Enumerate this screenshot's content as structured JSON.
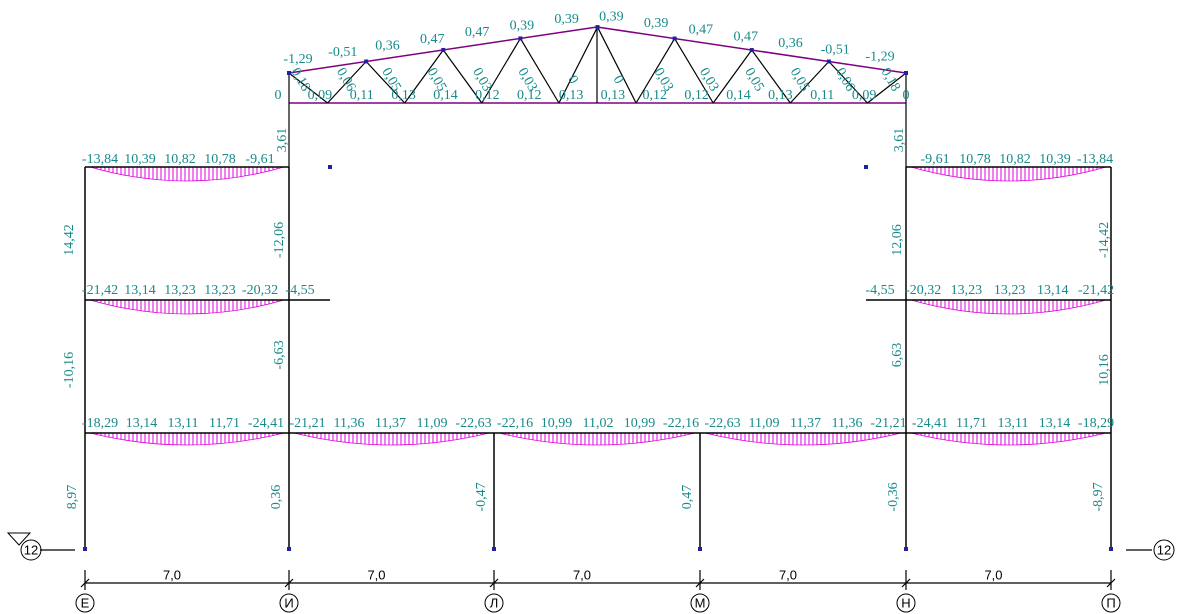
{
  "truss": {
    "top_chord": [
      "-1,29",
      "-0,51",
      "0,36",
      "0,47",
      "0,47",
      "0,39",
      "0,39",
      "0,39",
      "0,39",
      "0,47",
      "0,47",
      "0,36",
      "-0,51",
      "-1,29"
    ],
    "diagonals": [
      "0,18",
      "0,06",
      "0,05",
      "0,05",
      "0,03",
      "0,03",
      "0",
      "0",
      "0,03",
      "0,03",
      "0,05",
      "0,05",
      "0,06",
      "0,18"
    ],
    "bottom_chord": [
      "0",
      "0,09",
      "0,11",
      "0,13",
      "0,14",
      "0,12",
      "0,12",
      "0,13",
      "0,13",
      "0,12",
      "0,12",
      "0,14",
      "0,13",
      "0,11",
      "0,09",
      "0"
    ]
  },
  "frame": {
    "roof_left": [
      "-13,84",
      "10,39",
      "10,82",
      "10,78",
      "-9,61"
    ],
    "roof_right": [
      "-9,61",
      "10,78",
      "10,82",
      "10,39",
      "-13,84"
    ],
    "floor_left": [
      "-21,42",
      "13,14",
      "13,23",
      "13,23",
      "-20,32",
      "-4,55"
    ],
    "floor_right": [
      "-4,55",
      "-20,32",
      "13,23",
      "13,23",
      "13,14",
      "-21,42"
    ],
    "ground": [
      "-18,29",
      "13,14",
      "13,11",
      "11,71",
      "-24,41",
      "-21,21",
      "11,36",
      "11,37",
      "11,09",
      "-22,63",
      "-22,16",
      "10,99",
      "11,02",
      "10,99",
      "-22,16",
      "-22,63",
      "11,09",
      "11,37",
      "11,36",
      "-21,21",
      "-24,41",
      "11,71",
      "13,11",
      "13,14",
      "-18,29"
    ],
    "upper_columns": [
      "3,61",
      "14,42",
      "-12,06",
      "3,61",
      "12,06",
      "-14,42"
    ],
    "middle_columns": [
      "-10,16",
      "-6,63",
      "6,63",
      "10,16"
    ],
    "lower_columns": [
      "8,97",
      "0,36",
      "-0,47",
      "0,47",
      "-0,36",
      "-8,97"
    ]
  },
  "dimensions": [
    "7,0",
    "7,0",
    "7,0",
    "7,0",
    "7,0"
  ],
  "axes": [
    "Е",
    "И",
    "Л",
    "М",
    "Н",
    "П"
  ],
  "level_markers": [
    "12",
    "12"
  ]
}
